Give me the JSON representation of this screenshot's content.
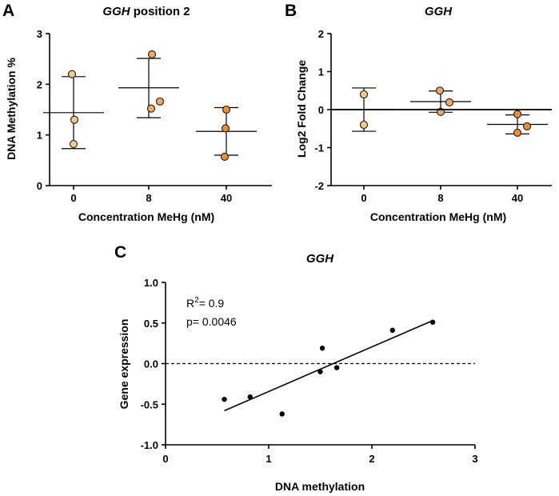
{
  "colors": {
    "point_light": "#F9C98A",
    "point_dark": "#ED8E2F",
    "point_stroke": "#1a1a1a",
    "line": "#000000",
    "background": "#ffffff"
  },
  "chart_data": [
    {
      "id": "A",
      "panel_label": "A",
      "type": "scatter",
      "title_italic": "GGH",
      "title_rest": " position 2",
      "xlabel": "Concentration MeHg (nM)",
      "ylabel": "DNA Methylation %",
      "categories": [
        "0",
        "8",
        "40"
      ],
      "ylim": [
        0,
        3
      ],
      "yticks": [
        0,
        1,
        2,
        3
      ],
      "ytick_labels": [
        "0",
        "1",
        "2",
        "3"
      ],
      "points": [
        {
          "category": "0",
          "value": 2.2,
          "shade": "light"
        },
        {
          "category": "0",
          "value": 1.3,
          "shade": "light"
        },
        {
          "category": "0",
          "value": 0.82,
          "shade": "light"
        },
        {
          "category": "8",
          "value": 2.59,
          "shade": "mid"
        },
        {
          "category": "8",
          "value": 1.52,
          "shade": "mid"
        },
        {
          "category": "8",
          "value": 1.66,
          "shade": "mid"
        },
        {
          "category": "40",
          "value": 1.5,
          "shade": "dark"
        },
        {
          "category": "40",
          "value": 1.13,
          "shade": "dark"
        },
        {
          "category": "40",
          "value": 0.57,
          "shade": "dark"
        }
      ],
      "summary": [
        {
          "category": "0",
          "mean": 1.44,
          "upper": 2.15,
          "lower": 0.73
        },
        {
          "category": "8",
          "mean": 1.93,
          "upper": 2.51,
          "lower": 1.34
        },
        {
          "category": "40",
          "mean": 1.07,
          "upper": 1.54,
          "lower": 0.6
        }
      ]
    },
    {
      "id": "B",
      "panel_label": "B",
      "type": "scatter",
      "title_italic": "GGH",
      "title_rest": "",
      "xlabel": "Concentration MeHg (nM)",
      "ylabel": "Log2 Fold Change",
      "categories": [
        "0",
        "8",
        "40"
      ],
      "ylim": [
        -2,
        2
      ],
      "yticks": [
        -2,
        -1,
        0,
        1,
        2
      ],
      "ytick_labels": [
        "-2",
        "-1",
        "0",
        "1",
        "2"
      ],
      "reference_line": 0,
      "points": [
        {
          "category": "0",
          "value": 0.4,
          "shade": "light"
        },
        {
          "category": "0",
          "value": -0.4,
          "shade": "light"
        },
        {
          "category": "8",
          "value": 0.5,
          "shade": "mid"
        },
        {
          "category": "8",
          "value": 0.19,
          "shade": "mid"
        },
        {
          "category": "8",
          "value": -0.06,
          "shade": "mid"
        },
        {
          "category": "40",
          "value": -0.12,
          "shade": "dark"
        },
        {
          "category": "40",
          "value": -0.44,
          "shade": "dark"
        },
        {
          "category": "40",
          "value": -0.61,
          "shade": "dark"
        }
      ],
      "summary": [
        {
          "category": "0",
          "mean": 0.0,
          "upper": 0.57,
          "lower": -0.57
        },
        {
          "category": "8",
          "mean": 0.21,
          "upper": 0.49,
          "lower": -0.07
        },
        {
          "category": "40",
          "mean": -0.39,
          "upper": -0.14,
          "lower": -0.64
        }
      ]
    },
    {
      "id": "C",
      "panel_label": "C",
      "type": "scatter",
      "title_italic": "GGH",
      "title_rest": "",
      "xlabel": "DNA methylation",
      "ylabel": "Gene expression",
      "xlim": [
        0,
        3
      ],
      "ylim": [
        -1.0,
        1.0
      ],
      "xticks": [
        0,
        1,
        2,
        3
      ],
      "xtick_labels": [
        "0",
        "1",
        "2",
        "3"
      ],
      "yticks": [
        -1.0,
        -0.5,
        0.0,
        0.5,
        1.0
      ],
      "ytick_labels": [
        "-1.0",
        "-0.5",
        "0.0",
        "0.5",
        "1.0"
      ],
      "reference_line": 0,
      "r2_prefix": "R",
      "r2_sup": "2",
      "r2_value": "= 0.9",
      "p_text": "p= 0.0046",
      "points": [
        {
          "x": 0.57,
          "y": -0.44
        },
        {
          "x": 0.82,
          "y": -0.41
        },
        {
          "x": 1.13,
          "y": -0.62
        },
        {
          "x": 1.5,
          "y": -0.1
        },
        {
          "x": 1.52,
          "y": 0.19
        },
        {
          "x": 1.66,
          "y": -0.05
        },
        {
          "x": 2.2,
          "y": 0.41
        },
        {
          "x": 2.59,
          "y": 0.51
        }
      ],
      "fit_line": {
        "x": [
          0.57,
          2.59
        ],
        "y": [
          -0.58,
          0.53
        ]
      }
    }
  ]
}
